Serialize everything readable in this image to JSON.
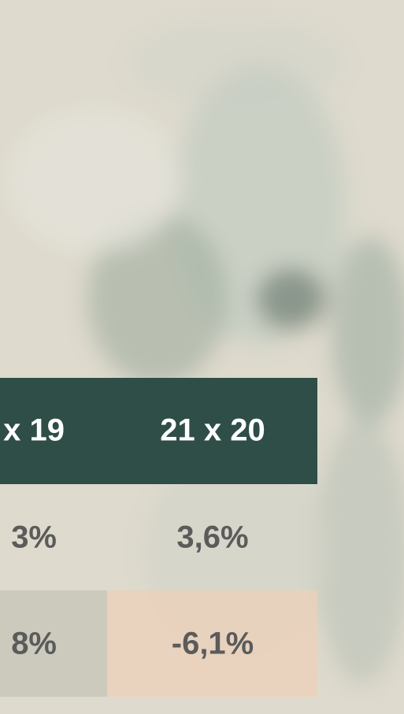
{
  "table": {
    "header": [
      "x 19",
      "21 x 20"
    ],
    "rows": [
      [
        "3%",
        "3,6%"
      ],
      [
        "8%",
        "-6,1%"
      ]
    ]
  }
}
